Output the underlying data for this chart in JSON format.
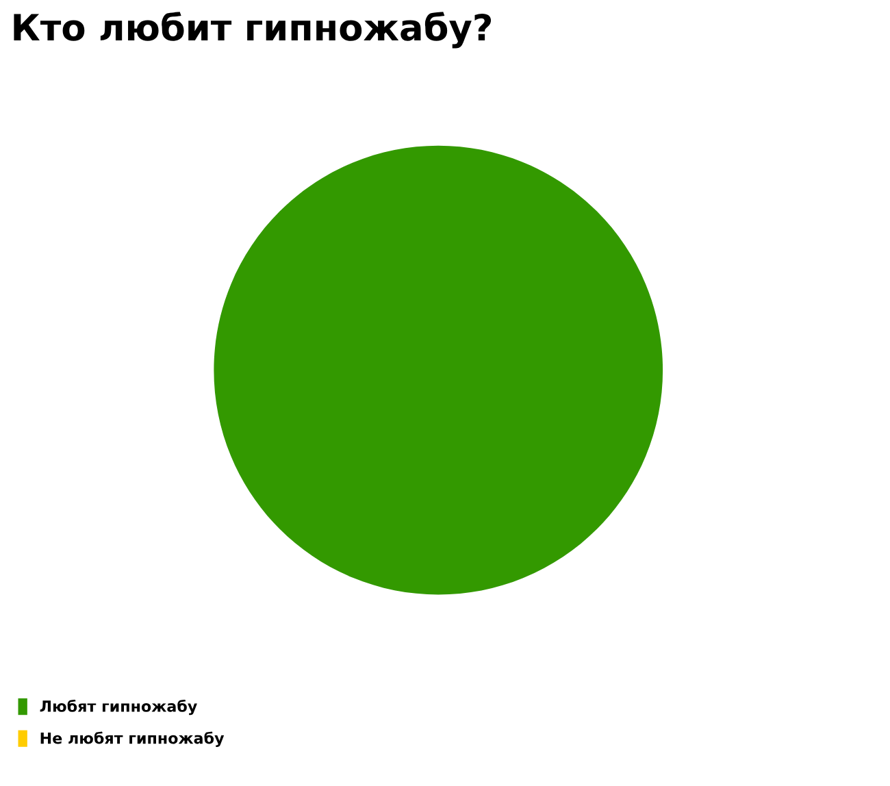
{
  "chart_data": {
    "type": "pie",
    "title": "Кто любит гипножабу?",
    "categories": [
      "Любят гипножабу",
      "Не любят гипножабу"
    ],
    "values": [
      100,
      0
    ],
    "colors": [
      "#339900",
      "#ffcc00"
    ],
    "legend": "bottom left"
  }
}
